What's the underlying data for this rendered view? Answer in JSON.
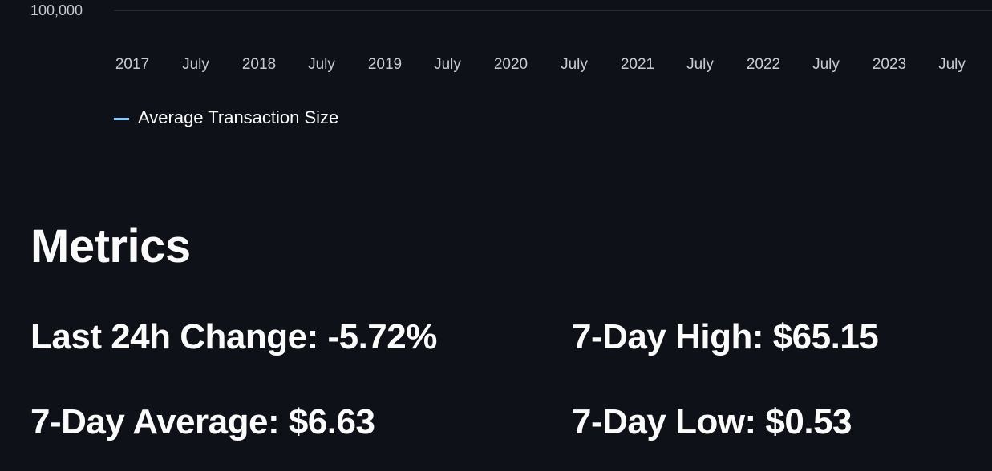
{
  "chart_data": {
    "type": "line",
    "x_tick_labels": [
      "2017",
      "July",
      "2018",
      "July",
      "2019",
      "July",
      "2020",
      "July",
      "2021",
      "July",
      "2022",
      "July",
      "2023",
      "July"
    ],
    "y_tick_labels": [
      "100,000"
    ],
    "series": [
      {
        "name": "Average Transaction Size",
        "color": "#83c9ff"
      }
    ],
    "legend_position": "bottom-left",
    "grid": true
  },
  "metrics": {
    "heading": "Metrics",
    "change_24h": "Last 24h Change: -5.72%",
    "high_7d": "7-Day High: $65.15",
    "average_7d": "7-Day Average: $6.63",
    "low_7d": "7-Day Low: $0.53"
  }
}
